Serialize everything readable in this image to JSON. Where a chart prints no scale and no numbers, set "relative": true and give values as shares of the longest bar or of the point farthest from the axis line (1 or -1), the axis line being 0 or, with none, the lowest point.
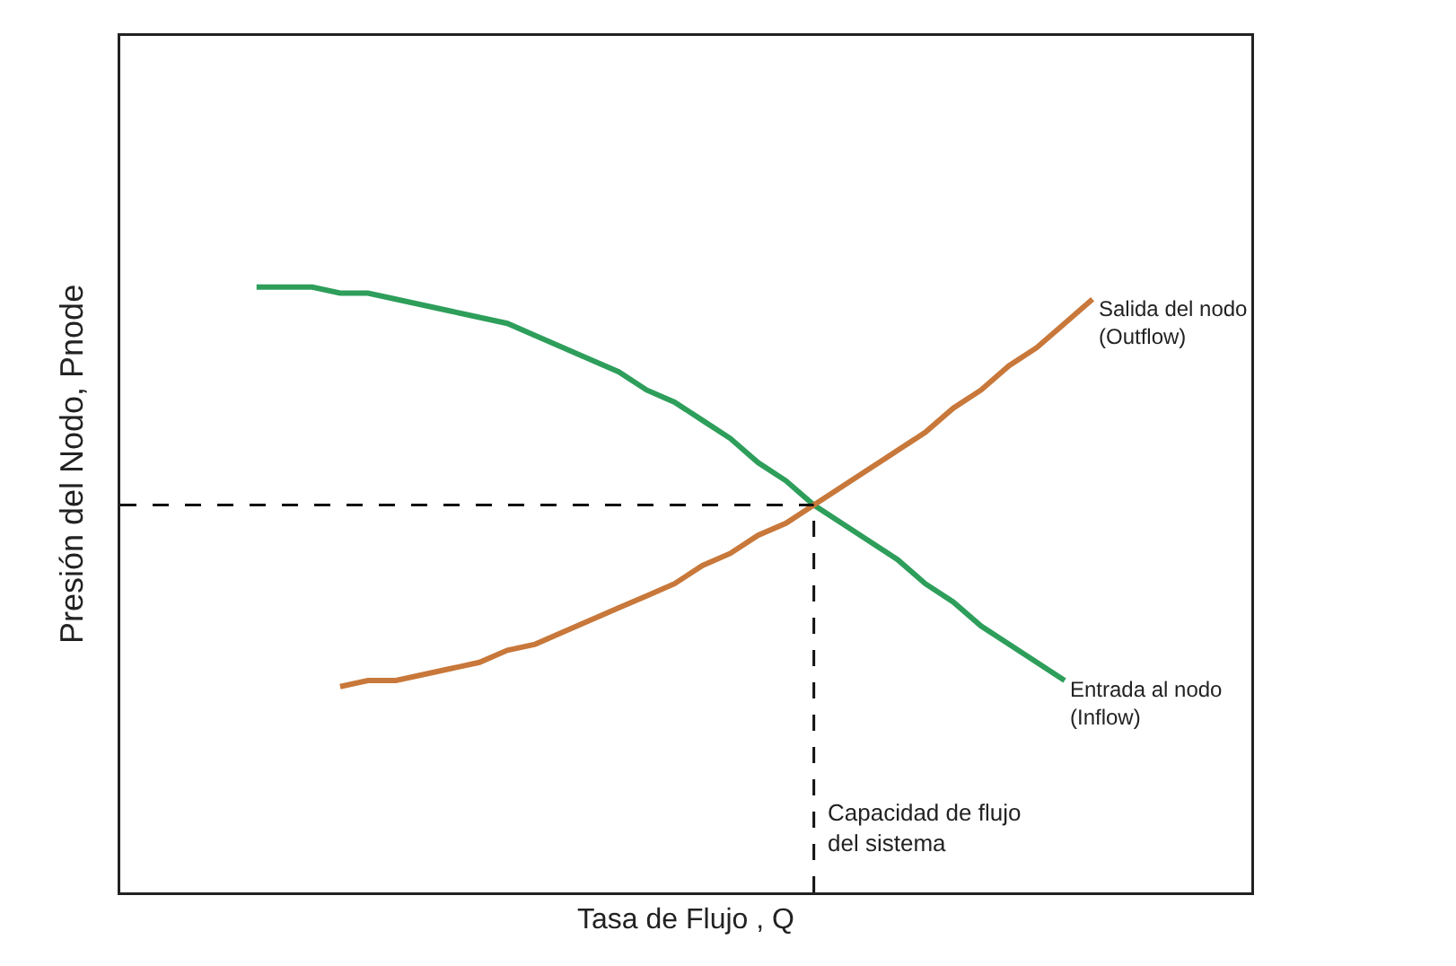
{
  "chart_data": {
    "type": "line",
    "relative": true,
    "xlabel": "Tasa de Flujo , Q",
    "ylabel": "Presión del Nodo, Pnode",
    "categories": [
      null,
      null,
      null,
      null,
      null,
      null,
      null,
      null,
      null,
      null,
      null,
      null,
      null,
      null,
      null,
      null,
      null,
      null,
      null,
      null,
      null,
      null,
      null,
      null,
      null,
      null,
      null,
      null,
      null,
      null,
      null
    ],
    "series": [
      {
        "name": "Entrada al nodo (Inflow)",
        "color": "#2e9e5b",
        "values": [
          1.0,
          1.0,
          1.0,
          0.99,
          0.99,
          0.98,
          0.97,
          0.96,
          0.95,
          0.94,
          0.92,
          0.9,
          0.88,
          0.86,
          0.83,
          0.81,
          0.78,
          0.75,
          0.71,
          0.68,
          0.64,
          0.61,
          0.58,
          0.55,
          0.51,
          0.48,
          0.44,
          0.41,
          0.38,
          0.35,
          null
        ]
      },
      {
        "name": "Salida del nodo (Outflow)",
        "color": "#c8783a",
        "values": [
          null,
          null,
          null,
          0.34,
          0.35,
          0.35,
          0.36,
          0.37,
          0.38,
          0.4,
          0.41,
          0.43,
          0.45,
          0.47,
          0.49,
          0.51,
          0.54,
          0.56,
          0.59,
          0.61,
          0.64,
          0.67,
          0.7,
          0.73,
          0.76,
          0.8,
          0.83,
          0.87,
          0.9,
          0.94,
          0.98
        ]
      }
    ],
    "ref_lines": [
      {
        "axis": "y",
        "value": 0.64,
        "label": null,
        "line_style": "dashed"
      }
    ],
    "annotations": [
      "Capacidad de flujo del sistema"
    ],
    "legend": false,
    "marker": "none",
    "line_style": "solid"
  }
}
